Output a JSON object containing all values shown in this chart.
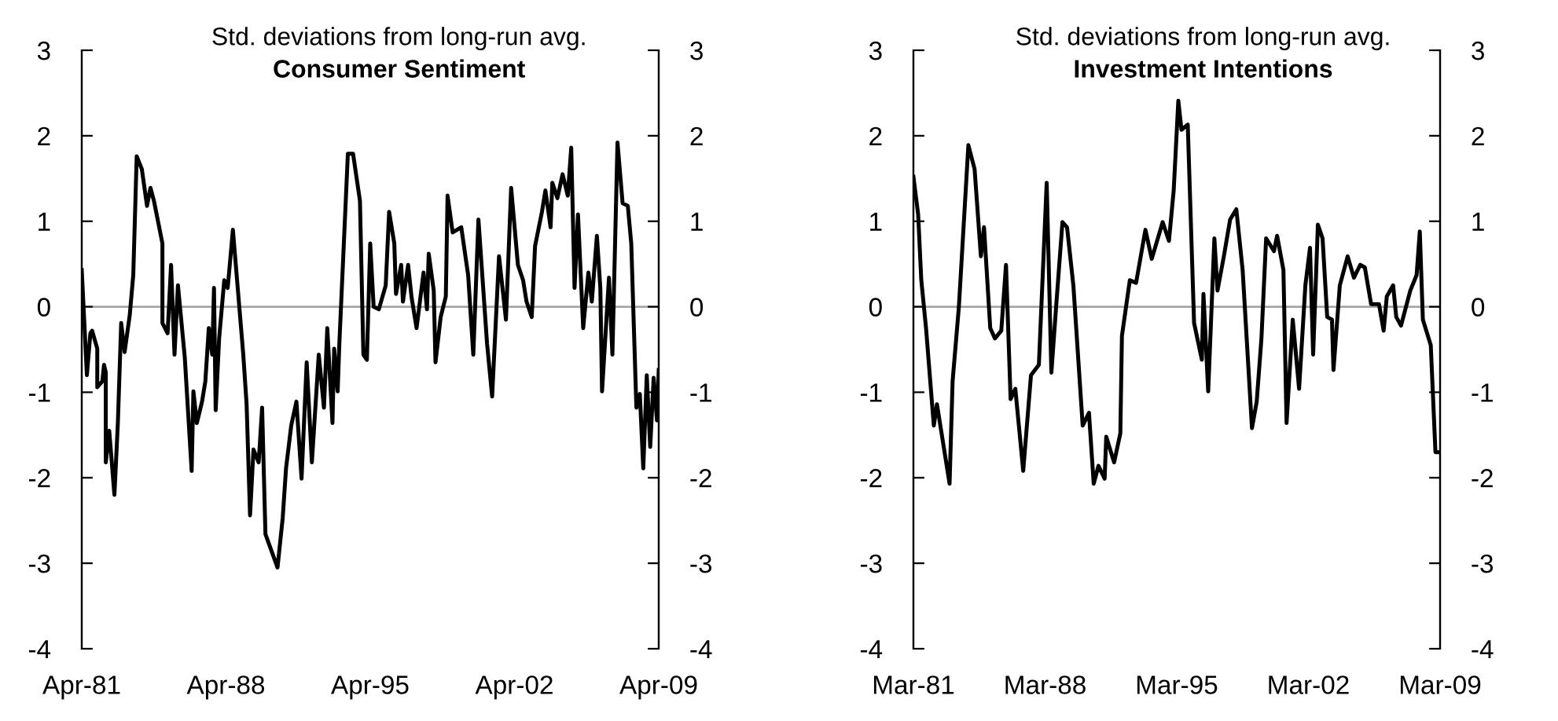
{
  "chart_data": [
    {
      "type": "line",
      "title": "Consumer Sentiment",
      "subtitle": "Std. deviations from long-run avg.",
      "series": [
        {
          "color": "#000000",
          "x": [
            "1981-04",
            "1981-07",
            "1981-09",
            "1981-10",
            "1982-01",
            "1982-01",
            "1982-04",
            "1982-05",
            "1982-06",
            "1982-06",
            "1982-08",
            "1982-11",
            "1983-01",
            "1983-03",
            "1983-05",
            "1983-08",
            "1983-10",
            "1983-12",
            "1984-03",
            "1984-06",
            "1984-08",
            "1984-10",
            "1985-03",
            "1985-03",
            "1985-06",
            "1985-08",
            "1985-10",
            "1985-12",
            "1986-04",
            "1986-08",
            "1986-09",
            "1986-11",
            "1987-02",
            "1987-04",
            "1987-06",
            "1987-08",
            "1987-09",
            "1987-10",
            "1987-12",
            "1988-03",
            "1988-05",
            "1988-08",
            "1989-02",
            "1989-04",
            "1989-06",
            "1989-08",
            "1989-11",
            "1990-01",
            "1990-03",
            "1990-10",
            "1991-01",
            "1991-03",
            "1991-06",
            "1991-09",
            "1991-12",
            "1992-03",
            "1992-06",
            "1992-10",
            "1993-01",
            "1993-03",
            "1993-06",
            "1993-07",
            "1993-09",
            "1993-10",
            "1994-03",
            "1994-06",
            "1994-10",
            "1994-12",
            "1995-02",
            "1995-04",
            "1995-06",
            "1995-09",
            "1996-01",
            "1996-03",
            "1996-06",
            "1996-07",
            "1996-10",
            "1996-11",
            "1997-02",
            "1997-04",
            "1997-07",
            "1997-11",
            "1998-01",
            "1998-02",
            "1998-05",
            "1998-06",
            "1998-09",
            "1998-12",
            "1999-01",
            "1999-04",
            "1999-09",
            "2000-01",
            "2000-04",
            "2000-07",
            "2000-12",
            "2001-03",
            "2001-07",
            "2001-11",
            "2002-02",
            "2002-06",
            "2002-09",
            "2002-11",
            "2003-02",
            "2003-04",
            "2003-08",
            "2003-10",
            "2004-01",
            "2004-02",
            "2004-05",
            "2004-08",
            "2004-11",
            "2005-01",
            "2005-03",
            "2005-05",
            "2005-08",
            "2005-11",
            "2006-01",
            "2006-04",
            "2006-06",
            "2006-07",
            "2006-11",
            "2007-01",
            "2007-04",
            "2007-07",
            "2007-10",
            "2007-12",
            "2008-03",
            "2008-05",
            "2008-07",
            "2008-09",
            "2008-11",
            "2009-01",
            "2009-03",
            "2009-04"
          ],
          "values": [
            0.43,
            -0.8,
            -0.31,
            -0.28,
            -0.49,
            -0.94,
            -0.87,
            -0.68,
            -0.77,
            -1.82,
            -1.45,
            -2.2,
            -1.36,
            -0.19,
            -0.53,
            -0.09,
            0.37,
            1.76,
            1.61,
            1.18,
            1.39,
            1.24,
            0.74,
            -0.19,
            -0.31,
            0.49,
            -0.56,
            0.25,
            -0.59,
            -1.92,
            -0.99,
            -1.36,
            -1.11,
            -0.87,
            -0.25,
            -0.56,
            0.22,
            -1.21,
            -0.37,
            0.31,
            0.22,
            0.9,
            -0.56,
            -1.14,
            -2.44,
            -1.67,
            -1.82,
            -1.18,
            -2.66,
            -3.05,
            -2.47,
            -1.89,
            -1.39,
            -1.11,
            -2.01,
            -0.65,
            -1.82,
            -0.56,
            -1.18,
            -0.25,
            -1.36,
            -0.49,
            -0.99,
            -0.43,
            1.79,
            1.79,
            1.24,
            -0.56,
            -0.62,
            0.74,
            0,
            -0.03,
            0.25,
            1.11,
            0.74,
            0.15,
            0.49,
            0.06,
            0.49,
            0.12,
            -0.25,
            0.4,
            -0.03,
            0.62,
            0.19,
            -0.65,
            -0.12,
            0.12,
            1.3,
            0.87,
            0.93,
            0.37,
            -0.56,
            1.02,
            -0.43,
            -1.05,
            0.59,
            -0.15,
            1.39,
            0.49,
            0.31,
            0.06,
            -0.12,
            0.71,
            1.11,
            1.36,
            0.93,
            1.45,
            1.27,
            1.55,
            1.3,
            1.86,
            0.22,
            1.08,
            -0.25,
            0.4,
            0.06,
            0.83,
            0.22,
            -0.99,
            0.34,
            -0.56,
            1.92,
            1.21,
            1.18,
            0.74,
            -1.18,
            -1.02,
            -1.89,
            -0.8,
            -1.64,
            -0.83,
            -1.33,
            -0.74
          ]
        }
      ],
      "xlim": [
        "1981-04",
        "2009-04"
      ],
      "xticks": [
        {
          "value": "1981-04",
          "label": "Apr-81"
        },
        {
          "value": "1988-04",
          "label": "Apr-88"
        },
        {
          "value": "1995-04",
          "label": "Apr-95"
        },
        {
          "value": "2002-04",
          "label": "Apr-02"
        },
        {
          "value": "2009-04",
          "label": "Apr-09"
        }
      ],
      "ylim": [
        -4,
        3
      ],
      "yticks": [
        -4,
        -3,
        -2,
        -1,
        0,
        1,
        2,
        3
      ],
      "y2lim": [
        -4,
        3
      ],
      "y2ticks": [
        -4,
        -3,
        -2,
        -1,
        0,
        1,
        2,
        3
      ],
      "ref_lines": [
        {
          "axis": "y",
          "value": 0,
          "color": "#a6a6a6"
        }
      ],
      "grid": false,
      "legend": false,
      "marker": "none",
      "line_style": "solid"
    },
    {
      "type": "line",
      "title": "Investment Intentions",
      "subtitle": "Std. deviations from long-run avg.",
      "series": [
        {
          "color": "#000000",
          "x": [
            "1981-03",
            "1981-06",
            "1981-08",
            "1981-11",
            "1982-04",
            "1982-06",
            "1983-02",
            "1983-04",
            "1983-08",
            "1984-02",
            "1984-06",
            "1984-10",
            "1984-12",
            "1985-04",
            "1985-07",
            "1985-11",
            "1986-02",
            "1986-05",
            "1986-08",
            "1987-01",
            "1987-06",
            "1987-11",
            "1988-04",
            "1988-07",
            "1988-10",
            "1989-02",
            "1989-05",
            "1989-09",
            "1990-03",
            "1990-07",
            "1990-10",
            "1991-01",
            "1991-05",
            "1991-06",
            "1991-11",
            "1992-03",
            "1992-04",
            "1992-09",
            "1993-01",
            "1993-07",
            "1993-11",
            "1994-06",
            "1994-10",
            "1995-01",
            "1995-04",
            "1995-06",
            "1995-10",
            "1996-02",
            "1996-07",
            "1996-08",
            "1996-11",
            "1997-03",
            "1997-05",
            "1997-09",
            "1998-01",
            "1998-05",
            "1998-09",
            "1999-03",
            "1999-06",
            "1999-09",
            "1999-12",
            "2000-05",
            "2000-07",
            "2000-11",
            "2001-01",
            "2001-05",
            "2001-09",
            "2002-01",
            "2002-04",
            "2002-06",
            "2002-09",
            "2002-12",
            "2003-03",
            "2003-06",
            "2003-07",
            "2003-11",
            "2004-04",
            "2004-08",
            "2004-12",
            "2005-03",
            "2005-07",
            "2005-12",
            "2006-03",
            "2006-05",
            "2006-09",
            "2006-11",
            "2007-02",
            "2007-08",
            "2007-12",
            "2008-02",
            "2008-04",
            "2008-09",
            "2008-12",
            "2009-03"
          ],
          "values": [
            1.52,
            1.08,
            0.31,
            -0.25,
            -1.39,
            -1.14,
            -2.07,
            -0.87,
            0,
            1.89,
            1.61,
            0.59,
            0.93,
            -0.25,
            -0.37,
            -0.28,
            0.49,
            -1.08,
            -0.96,
            -1.92,
            -0.8,
            -0.68,
            1.45,
            -0.77,
            0,
            0.99,
            0.93,
            0.25,
            -1.39,
            -1.24,
            -2.07,
            -1.86,
            -2.01,
            -1.52,
            -1.82,
            -1.48,
            -0.34,
            0.31,
            0.28,
            0.9,
            0.56,
            0.99,
            0.77,
            1.36,
            2.41,
            2.07,
            2.13,
            -0.19,
            -0.62,
            0.15,
            -0.99,
            0.8,
            0.19,
            0.59,
            1.02,
            1.14,
            0.43,
            -1.42,
            -1.11,
            -0.37,
            0.8,
            0.65,
            0.83,
            0.43,
            -1.36,
            -0.15,
            -0.96,
            0.25,
            0.69,
            -0.56,
            0.96,
            0.8,
            -0.12,
            -0.15,
            -0.74,
            0.25,
            0.59,
            0.34,
            0.49,
            0.46,
            0.03,
            0.03,
            -0.28,
            0.12,
            0.25,
            -0.12,
            -0.22,
            0.19,
            0.37,
            0.88,
            -0.15,
            -0.45,
            -1.7,
            -1.7
          ]
        }
      ],
      "xlim": [
        "1981-03",
        "2009-03"
      ],
      "xticks": [
        {
          "value": "1981-03",
          "label": "Mar-81"
        },
        {
          "value": "1988-03",
          "label": "Mar-88"
        },
        {
          "value": "1995-03",
          "label": "Mar-95"
        },
        {
          "value": "2002-03",
          "label": "Mar-02"
        },
        {
          "value": "2009-03",
          "label": "Mar-09"
        }
      ],
      "ylim": [
        -4,
        3
      ],
      "yticks": [
        -4,
        -3,
        -2,
        -1,
        0,
        1,
        2,
        3
      ],
      "y2lim": [
        -4,
        3
      ],
      "y2ticks": [
        -4,
        -3,
        -2,
        -1,
        0,
        1,
        2,
        3
      ],
      "ref_lines": [
        {
          "axis": "y",
          "value": 0,
          "color": "#a6a6a6"
        }
      ],
      "grid": false,
      "legend": false,
      "marker": "none",
      "line_style": "solid"
    }
  ]
}
